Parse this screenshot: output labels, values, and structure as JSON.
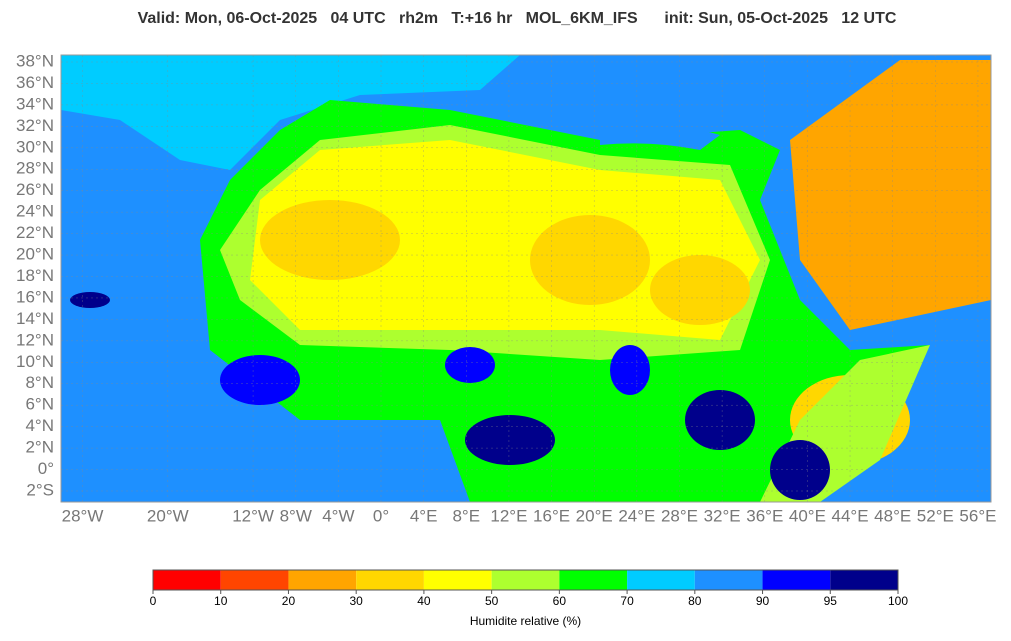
{
  "header": {
    "title": "Valid: Mon, 06-Oct-2025   04 UTC   rh2m   T:+16 hr   MOL_6KM_IFS      init: Sun, 05-Oct-2025   12 UTC"
  },
  "map": {
    "lat_labels": [
      "38°N",
      "36°N",
      "34°N",
      "32°N",
      "30°N",
      "28°N",
      "26°N",
      "24°N",
      "22°N",
      "20°N",
      "18°N",
      "16°N",
      "14°N",
      "12°N",
      "10°N",
      "8°N",
      "6°N",
      "4°N",
      "2°N",
      "0°",
      "2°S"
    ],
    "lon_labels": [
      "28°W",
      "20°W",
      "12°W",
      "8°W",
      "4°W",
      "0°",
      "4°E",
      "8°E",
      "12°E",
      "16°E",
      "20°E",
      "24°E",
      "28°E",
      "32°E",
      "36°E",
      "40°E",
      "44°E",
      "48°E",
      "52°E",
      "56°E"
    ]
  },
  "colorbar": {
    "label": "Humidite relative (%)",
    "ticks": [
      0,
      10,
      20,
      30,
      40,
      50,
      60,
      70,
      80,
      90,
      95,
      100
    ],
    "colors": [
      "#ff0000",
      "#ff4500",
      "#ffa500",
      "#ffd700",
      "#ffff00",
      "#adff2f",
      "#00ff00",
      "#00ccff",
      "#1e90ff",
      "#0000ff",
      "#00008b"
    ]
  }
}
